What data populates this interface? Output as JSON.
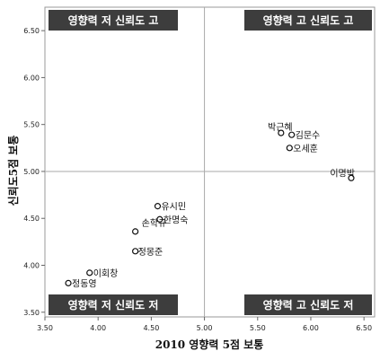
{
  "chart_data": {
    "type": "scatter",
    "xlabel": "2010 영향력 5점 보통",
    "ylabel": "신뢰도5점 보통",
    "xlim": [
      3.5,
      6.6
    ],
    "ylim": [
      3.45,
      6.75
    ],
    "x_ticks": [
      "3.50",
      "4.00",
      "4.50",
      "5.00",
      "5.50",
      "6.00",
      "6.50"
    ],
    "y_ticks": [
      "3.50",
      "4.00",
      "4.50",
      "5.00",
      "5.50",
      "6.00",
      "6.50"
    ],
    "reference_lines": {
      "x": 5.0,
      "y": 5.0
    },
    "grid": false,
    "quadrant_labels": {
      "top_left": "영향력 저 신뢰도 고",
      "top_right": "영향력 고 신뢰도 고",
      "bottom_left": "영향력 저 신뢰도 저",
      "bottom_right": "영향력 고 신뢰도 저"
    },
    "points": [
      {
        "label": "박근혜",
        "x": 5.72,
        "y": 5.41
      },
      {
        "label": "김문수",
        "x": 5.82,
        "y": 5.39
      },
      {
        "label": "오세훈",
        "x": 5.8,
        "y": 5.25
      },
      {
        "label": "이명박",
        "x": 6.38,
        "y": 4.93
      },
      {
        "label": "유시민",
        "x": 4.56,
        "y": 4.63
      },
      {
        "label": "한명숙",
        "x": 4.58,
        "y": 4.49
      },
      {
        "label": "손학규",
        "x": 4.35,
        "y": 4.36
      },
      {
        "label": "정몽준",
        "x": 4.35,
        "y": 4.15
      },
      {
        "label": "이회창",
        "x": 3.92,
        "y": 3.92
      },
      {
        "label": "정동영",
        "x": 3.72,
        "y": 3.81
      }
    ]
  }
}
